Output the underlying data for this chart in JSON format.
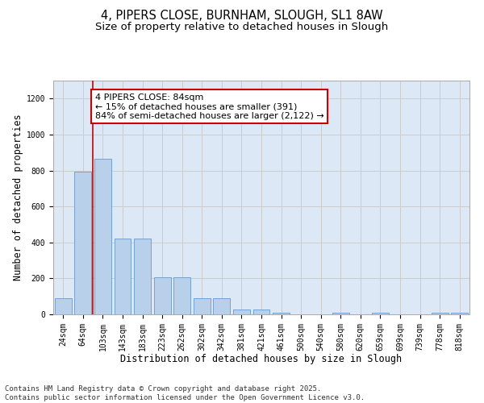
{
  "title_line1": "4, PIPERS CLOSE, BURNHAM, SLOUGH, SL1 8AW",
  "title_line2": "Size of property relative to detached houses in Slough",
  "xlabel": "Distribution of detached houses by size in Slough",
  "ylabel": "Number of detached properties",
  "categories": [
    "24sqm",
    "64sqm",
    "103sqm",
    "143sqm",
    "183sqm",
    "223sqm",
    "262sqm",
    "302sqm",
    "342sqm",
    "381sqm",
    "421sqm",
    "461sqm",
    "500sqm",
    "540sqm",
    "580sqm",
    "620sqm",
    "659sqm",
    "699sqm",
    "739sqm",
    "778sqm",
    "818sqm"
  ],
  "values": [
    90,
    795,
    865,
    420,
    420,
    205,
    205,
    90,
    90,
    25,
    25,
    10,
    0,
    0,
    10,
    0,
    10,
    0,
    0,
    10,
    10
  ],
  "bar_color": "#b8d0ea",
  "bar_edge_color": "#6699cc",
  "vline_x": 1.5,
  "vline_color": "#cc0000",
  "annotation_text": "4 PIPERS CLOSE: 84sqm\n← 15% of detached houses are smaller (391)\n84% of semi-detached houses are larger (2,122) →",
  "annotation_box_color": "#ffffff",
  "annotation_box_edge": "#cc0000",
  "ylim": [
    0,
    1300
  ],
  "yticks": [
    0,
    200,
    400,
    600,
    800,
    1000,
    1200
  ],
  "grid_color": "#cccccc",
  "bg_color": "#dce8f5",
  "footnote1": "Contains HM Land Registry data © Crown copyright and database right 2025.",
  "footnote2": "Contains public sector information licensed under the Open Government Licence v3.0.",
  "title_fontsize": 10.5,
  "subtitle_fontsize": 9.5,
  "axis_label_fontsize": 8.5,
  "tick_fontsize": 7,
  "annot_fontsize": 8,
  "footnote_fontsize": 6.5
}
